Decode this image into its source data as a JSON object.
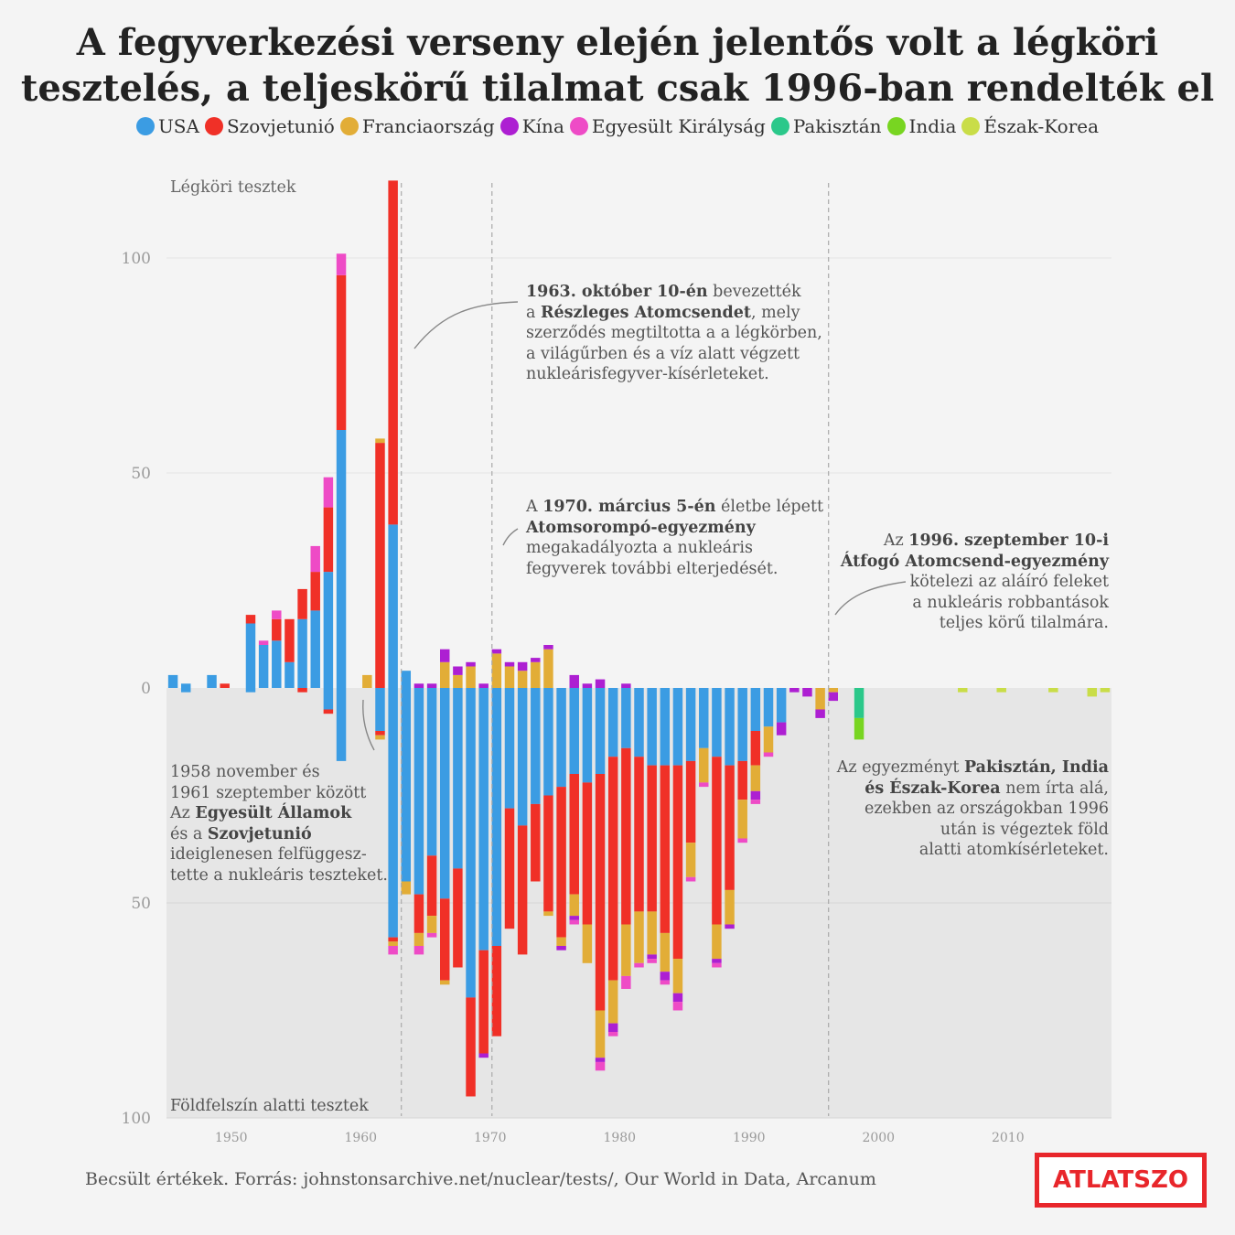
{
  "title": {
    "line1": "A fegyverkezési verseny elején jelentős volt a légköri",
    "line2": "tesztelés, a teljeskörű tilalmat csak 1996-ban rendelték el"
  },
  "legend": [
    {
      "name": "USA",
      "color": "#3b9ce3"
    },
    {
      "name": "Szovjetunió",
      "color": "#f03027"
    },
    {
      "name": "Franciaország",
      "color": "#e2ad37"
    },
    {
      "name": "Kína",
      "color": "#ad1fd2"
    },
    {
      "name": "Egyesült Királyság",
      "color": "#ee4bc6"
    },
    {
      "name": "Pakisztán",
      "color": "#2bc88a"
    },
    {
      "name": "India",
      "color": "#78d521"
    },
    {
      "name": "Észak-Korea",
      "color": "#c9dd48"
    }
  ],
  "annotations": {
    "ptbt": [
      [
        {
          "t": "1963. október 10-én",
          "b": true
        },
        {
          "t": " bevezették"
        }
      ],
      [
        {
          "t": "a "
        },
        {
          "t": "Részleges Atomcsendet",
          "b": true
        },
        {
          "t": ", mely"
        }
      ],
      [
        {
          "t": "szerződés megtiltotta a a légkörben,"
        }
      ],
      [
        {
          "t": "a világűrben és a víz alatt végzett"
        }
      ],
      [
        {
          "t": "nukleárisfegyver-kísérleteket."
        }
      ]
    ],
    "npt": [
      [
        {
          "t": "A "
        },
        {
          "t": "1970. március 5-én",
          "b": true
        },
        {
          "t": " életbe lépett"
        }
      ],
      [
        {
          "t": "Atomsorompó-egyezmény",
          "b": true
        }
      ],
      [
        {
          "t": "megakadályozta a nukleáris"
        }
      ],
      [
        {
          "t": "fegyverek további elterjedését."
        }
      ]
    ],
    "ctbt": [
      [
        {
          "t": "Az "
        },
        {
          "t": "1996. szeptember 10-i",
          "b": true
        }
      ],
      [
        {
          "t": "Átfogó Atomcsend-egyezmény",
          "b": true
        }
      ],
      [
        {
          "t": "kötelezi az  aláíró feleket"
        }
      ],
      [
        {
          "t": "a nukleáris robbantások"
        }
      ],
      [
        {
          "t": "teljes körű tilalmára."
        }
      ]
    ],
    "moratorium": [
      [
        {
          "t": "1958 november és"
        }
      ],
      [
        {
          "t": "1961 szeptember között"
        }
      ],
      [
        {
          "t": "Az "
        },
        {
          "t": "Egyesült Államok",
          "b": true
        }
      ],
      [
        {
          "t": "és a "
        },
        {
          "t": "Szovjetunió",
          "b": true
        }
      ],
      [
        {
          "t": "ideiglenesen felfüggesz-"
        }
      ],
      [
        {
          "t": "tette a nukleáris teszteket."
        }
      ]
    ],
    "nonsigners": [
      [
        {
          "t": "Az egyezményt "
        },
        {
          "t": "Pakisztán, India",
          "b": true
        }
      ],
      [
        {
          "t": "és Észak-Korea",
          "b": true
        },
        {
          "t": " nem írta alá,"
        }
      ],
      [
        {
          "t": "ezekben az országokban 1996"
        }
      ],
      [
        {
          "t": "után is végeztek föld"
        }
      ],
      [
        {
          "t": "alatti atomkísérleteket."
        }
      ]
    ]
  },
  "footer": {
    "source": "Becsült értékek. Forrás: johnstonsarchive.net/nuclear/tests/, Our World in Data, Arcanum",
    "logo": "ATLATSZO"
  },
  "chart_data": {
    "type": "bar",
    "stacked": true,
    "diverging": true,
    "top_label": "Légköri tesztek",
    "bottom_label": "Földfelszín alatti tesztek",
    "y_ticks": [
      100,
      50,
      0,
      50,
      100
    ],
    "ylim_atmospheric": [
      0,
      100
    ],
    "ylim_underground": [
      0,
      100
    ],
    "x_ticks": [
      "1950",
      "1960",
      "1970",
      "1980",
      "1990",
      "2000",
      "2010"
    ],
    "x_range": [
      1945,
      2017
    ],
    "reference_years": [
      1963,
      1970,
      1996
    ],
    "series_order": [
      "USA",
      "Szovjetunió",
      "Franciaország",
      "Kína",
      "Egyesült Királyság",
      "Pakisztán",
      "India",
      "Észak-Korea"
    ],
    "years": [
      {
        "year": 1945,
        "above": {
          "USA": 3
        },
        "below": {}
      },
      {
        "year": 1946,
        "above": {
          "USA": 1
        },
        "below": {
          "USA": 1
        }
      },
      {
        "year": 1948,
        "above": {
          "USA": 3
        },
        "below": {}
      },
      {
        "year": 1949,
        "above": {
          "Szovjetunió": 1
        },
        "below": {}
      },
      {
        "year": 1951,
        "above": {
          "USA": 15,
          "Szovjetunió": 2
        },
        "below": {
          "USA": 1
        }
      },
      {
        "year": 1952,
        "above": {
          "USA": 10,
          "Egyesült Királyság": 1
        },
        "below": {}
      },
      {
        "year": 1953,
        "above": {
          "USA": 11,
          "Szovjetunió": 5,
          "Egyesült Királyság": 2
        },
        "below": {}
      },
      {
        "year": 1954,
        "above": {
          "USA": 6,
          "Szovjetunió": 10
        },
        "below": {}
      },
      {
        "year": 1955,
        "above": {
          "USA": 16,
          "Szovjetunió": 7
        },
        "below": {
          "Szovjetunió": 1
        }
      },
      {
        "year": 1956,
        "above": {
          "USA": 18,
          "Szovjetunió": 9,
          "Egyesült Királyság": 6
        },
        "below": {}
      },
      {
        "year": 1957,
        "above": {
          "USA": 27,
          "Szovjetunió": 15,
          "Egyesült Királyság": 7
        },
        "below": {
          "USA": 5,
          "Szovjetunió": 1
        }
      },
      {
        "year": 1958,
        "above": {
          "USA": 60,
          "Szovjetunió": 36,
          "Egyesült Királyság": 5
        },
        "below": {
          "USA": 17
        }
      },
      {
        "year": 1960,
        "above": {
          "Franciaország": 3
        },
        "below": {}
      },
      {
        "year": 1961,
        "above": {
          "Szovjetunió": 57,
          "Franciaország": 1
        },
        "below": {
          "USA": 10,
          "Szovjetunió": 1,
          "Franciaország": 1
        }
      },
      {
        "year": 1962,
        "above": {
          "USA": 38,
          "Szovjetunió": 80
        },
        "below": {
          "USA": 58,
          "Szovjetunió": 1,
          "Franciaország": 1,
          "Egyesült Királyság": 2
        }
      },
      {
        "year": 1963,
        "above": {
          "USA": 4
        },
        "below": {
          "USA": 45,
          "Franciaország": 3
        }
      },
      {
        "year": 1964,
        "above": {
          "Kína": 1
        },
        "below": {
          "USA": 48,
          "Szovjetunió": 9,
          "Franciaország": 3,
          "Egyesült Királyság": 2
        }
      },
      {
        "year": 1965,
        "above": {
          "Kína": 1
        },
        "below": {
          "USA": 39,
          "Szovjetunió": 14,
          "Franciaország": 4,
          "Egyesült Királyság": 1
        }
      },
      {
        "year": 1966,
        "above": {
          "Franciaország": 6,
          "Kína": 3
        },
        "below": {
          "USA": 49,
          "Szovjetunió": 19,
          "Franciaország": 1
        }
      },
      {
        "year": 1967,
        "above": {
          "Franciaország": 3,
          "Kína": 2
        },
        "below": {
          "USA": 42,
          "Szovjetunió": 23
        }
      },
      {
        "year": 1968,
        "above": {
          "Franciaország": 5,
          "Kína": 1
        },
        "below": {
          "USA": 72,
          "Szovjetunió": 23
        }
      },
      {
        "year": 1969,
        "above": {
          "Kína": 1
        },
        "below": {
          "USA": 61,
          "Szovjetunió": 24,
          "Kína": 1
        }
      },
      {
        "year": 1970,
        "above": {
          "Franciaország": 8,
          "Kína": 1
        },
        "below": {
          "USA": 60,
          "Szovjetunió": 21
        }
      },
      {
        "year": 1971,
        "above": {
          "Franciaország": 5,
          "Kína": 1
        },
        "below": {
          "USA": 28,
          "Szovjetunió": 28
        }
      },
      {
        "year": 1972,
        "above": {
          "Franciaország": 4,
          "Kína": 2
        },
        "below": {
          "USA": 32,
          "Szovjetunió": 30
        }
      },
      {
        "year": 1973,
        "above": {
          "Franciaország": 6,
          "Kína": 1
        },
        "below": {
          "USA": 27,
          "Szovjetunió": 18
        }
      },
      {
        "year": 1974,
        "above": {
          "Franciaország": 9,
          "Kína": 1
        },
        "below": {
          "USA": 25,
          "Szovjetunió": 27,
          "Franciaország": 1
        }
      },
      {
        "year": 1975,
        "below": {
          "USA": 23,
          "Szovjetunió": 35,
          "Franciaország": 2,
          "Kína": 1
        }
      },
      {
        "year": 1976,
        "above": {
          "Kína": 3
        },
        "below": {
          "USA": 20,
          "Szovjetunió": 28,
          "Franciaország": 5,
          "Kína": 1,
          "Egyesült Királyság": 1
        }
      },
      {
        "year": 1977,
        "above": {
          "Kína": 1
        },
        "below": {
          "USA": 22,
          "Szovjetunió": 33,
          "Franciaország": 9
        }
      },
      {
        "year": 1978,
        "above": {
          "Kína": 2
        },
        "below": {
          "USA": 20,
          "Szovjetunió": 55,
          "Franciaország": 11,
          "Kína": 1,
          "Egyesült Királyság": 2
        }
      },
      {
        "year": 1979,
        "below": {
          "USA": 16,
          "Szovjetunió": 52,
          "Franciaország": 10,
          "Kína": 2,
          "Egyesült Királyság": 1
        }
      },
      {
        "year": 1980,
        "above": {
          "Kína": 1
        },
        "below": {
          "USA": 14,
          "Szovjetunió": 41,
          "Franciaország": 12,
          "Egyesült Királyság": 3
        }
      },
      {
        "year": 1981,
        "below": {
          "USA": 16,
          "Szovjetunió": 36,
          "Franciaország": 12,
          "Egyesült Királyság": 1
        }
      },
      {
        "year": 1982,
        "below": {
          "USA": 18,
          "Szovjetunió": 34,
          "Franciaország": 10,
          "Kína": 1,
          "Egyesült Királyság": 1
        }
      },
      {
        "year": 1983,
        "below": {
          "USA": 18,
          "Szovjetunió": 39,
          "Franciaország": 9,
          "Kína": 2,
          "Egyesült Királyság": 1
        }
      },
      {
        "year": 1984,
        "below": {
          "USA": 18,
          "Szovjetunió": 45,
          "Franciaország": 8,
          "Kína": 2,
          "Egyesült Királyság": 2
        }
      },
      {
        "year": 1985,
        "below": {
          "USA": 17,
          "Szovjetunió": 19,
          "Franciaország": 8,
          "Egyesült Királyság": 1
        }
      },
      {
        "year": 1986,
        "below": {
          "USA": 14,
          "Franciaország": 8,
          "Egyesült Királyság": 1
        }
      },
      {
        "year": 1987,
        "below": {
          "USA": 16,
          "Szovjetunió": 39,
          "Franciaország": 8,
          "Kína": 1,
          "Egyesült Királyság": 1
        }
      },
      {
        "year": 1988,
        "below": {
          "USA": 18,
          "Szovjetunió": 29,
          "Franciaország": 8,
          "Kína": 1
        }
      },
      {
        "year": 1989,
        "below": {
          "USA": 17,
          "Szovjetunió": 9,
          "Franciaország": 9,
          "Egyesült Királyság": 1
        }
      },
      {
        "year": 1990,
        "below": {
          "USA": 10,
          "Szovjetunió": 8,
          "Franciaország": 6,
          "Kína": 2,
          "Egyesült Királyság": 1
        }
      },
      {
        "year": 1991,
        "below": {
          "USA": 9,
          "Franciaország": 6,
          "Egyesült Királyság": 1
        }
      },
      {
        "year": 1992,
        "below": {
          "USA": 8,
          "Kína": 3
        }
      },
      {
        "year": 1993,
        "below": {
          "Kína": 1
        }
      },
      {
        "year": 1994,
        "below": {
          "Kína": 2
        }
      },
      {
        "year": 1995,
        "below": {
          "Franciaország": 5,
          "Kína": 2
        }
      },
      {
        "year": 1996,
        "below": {
          "Franciaország": 1,
          "Kína": 2
        }
      },
      {
        "year": 1998,
        "below": {
          "Pakisztán": 7,
          "India": 5
        }
      },
      {
        "year": 2006,
        "below": {
          "Észak-Korea": 1
        }
      },
      {
        "year": 2009,
        "below": {
          "Észak-Korea": 1
        }
      },
      {
        "year": 2013,
        "below": {
          "Észak-Korea": 1
        }
      },
      {
        "year": 2016,
        "below": {
          "Észak-Korea": 2
        }
      },
      {
        "year": 2017,
        "below": {
          "Észak-Korea": 1
        }
      }
    ]
  }
}
